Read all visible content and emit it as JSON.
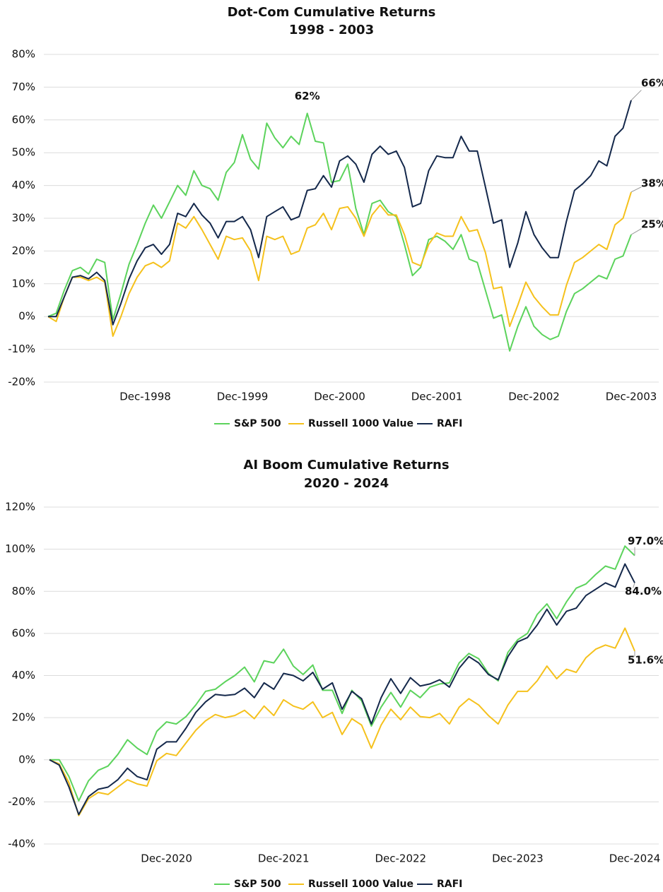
{
  "chart_data": [
    {
      "type": "line",
      "title": "Dot-Com Cumulative Returns",
      "subtitle": "1998 - 2003",
      "categories": [
        null,
        null,
        null,
        null,
        null,
        null,
        null,
        null,
        null,
        null,
        null,
        null,
        "Dec-1998",
        null,
        null,
        null,
        null,
        null,
        null,
        null,
        null,
        null,
        null,
        null,
        "Dec-1999",
        null,
        null,
        null,
        null,
        null,
        null,
        null,
        null,
        null,
        null,
        null,
        "Dec-2000",
        null,
        null,
        null,
        null,
        null,
        null,
        null,
        null,
        null,
        null,
        null,
        "Dec-2001",
        null,
        null,
        null,
        null,
        null,
        null,
        null,
        null,
        null,
        null,
        null,
        "Dec-2002",
        null,
        null,
        null,
        null,
        null,
        null,
        null,
        null,
        null,
        null,
        null,
        "Dec-2003"
      ],
      "ylim": [
        -20,
        80
      ],
      "yticks": [
        {
          "value": -20,
          "label": "-20%"
        },
        {
          "value": -10,
          "label": "-10%"
        },
        {
          "value": 0,
          "label": "0%"
        },
        {
          "value": 10,
          "label": "10%"
        },
        {
          "value": 20,
          "label": "20%"
        },
        {
          "value": 30,
          "label": "30%"
        },
        {
          "value": 40,
          "label": "40%"
        },
        {
          "value": 50,
          "label": "50%"
        },
        {
          "value": 60,
          "label": "60%"
        },
        {
          "value": 70,
          "label": "70%"
        },
        {
          "value": 80,
          "label": "80%"
        }
      ],
      "grid": true,
      "series": [
        {
          "name": "S&P 500",
          "color": "#5cd35c",
          "values": [
            0,
            1,
            8,
            14,
            15,
            13,
            17.5,
            16.5,
            -1,
            7,
            16,
            22,
            28.5,
            34,
            30,
            35,
            40,
            37,
            44.5,
            40,
            39,
            35.5,
            44,
            47,
            55.5,
            48,
            45,
            59,
            54.5,
            51.5,
            55,
            52.5,
            62,
            53.5,
            53,
            41,
            41.5,
            46.5,
            33,
            25,
            34.5,
            35.5,
            32,
            30.5,
            22,
            12.5,
            15,
            23.5,
            24.5,
            23,
            20.5,
            25,
            17.5,
            16.5,
            8,
            -0.5,
            0.5,
            -10.5,
            -3,
            3,
            -3,
            -5.5,
            -7,
            -6,
            1.5,
            7,
            8.5,
            10.5,
            12.5,
            11.5,
            17.5,
            18.5,
            25
          ],
          "value_labels": [
            null,
            null,
            null,
            null,
            null,
            null,
            null,
            null,
            null,
            null,
            null,
            null,
            null,
            null,
            null,
            null,
            null,
            null,
            null,
            null,
            null,
            null,
            null,
            null,
            null,
            null,
            null,
            null,
            null,
            null,
            null,
            null,
            "62%",
            null,
            null,
            null,
            null,
            null,
            null,
            null,
            null,
            null,
            null,
            null,
            null,
            null,
            null,
            null,
            null,
            null,
            null,
            null,
            null,
            null,
            null,
            null,
            null,
            null,
            null,
            null,
            null,
            null,
            null,
            null,
            null,
            null,
            null,
            null,
            null,
            null,
            null,
            null,
            "25%"
          ]
        },
        {
          "name": "Russell 1000 Value",
          "color": "#f5c11c",
          "values": [
            0,
            -1.5,
            6,
            12,
            12,
            11,
            12,
            10.5,
            -6,
            0,
            7,
            12,
            15.5,
            16.5,
            15,
            17,
            28.5,
            27,
            30.5,
            26.5,
            22,
            17.5,
            24.5,
            23.5,
            24,
            20,
            11,
            24.5,
            23.5,
            24.5,
            19,
            20,
            27,
            28,
            31.5,
            26.5,
            33,
            33.5,
            30,
            24.5,
            31,
            34,
            31,
            31,
            25,
            16.5,
            15.5,
            22,
            25.5,
            24.5,
            24.5,
            30.5,
            26,
            26.5,
            19.5,
            8.5,
            9,
            -3,
            3.5,
            10.5,
            6,
            3,
            0.5,
            0.5,
            9.5,
            16.5,
            18,
            20,
            22,
            20.5,
            28,
            30,
            38
          ],
          "value_labels": [
            null,
            null,
            null,
            null,
            null,
            null,
            null,
            null,
            null,
            null,
            null,
            null,
            null,
            null,
            null,
            null,
            null,
            null,
            null,
            null,
            null,
            null,
            null,
            null,
            null,
            null,
            null,
            null,
            null,
            null,
            null,
            null,
            null,
            null,
            null,
            null,
            null,
            null,
            null,
            null,
            null,
            null,
            null,
            null,
            null,
            null,
            null,
            null,
            null,
            null,
            null,
            null,
            null,
            null,
            null,
            null,
            null,
            null,
            null,
            null,
            null,
            null,
            null,
            null,
            null,
            null,
            null,
            null,
            null,
            null,
            null,
            null,
            "38%"
          ]
        },
        {
          "name": "RAFI",
          "color": "#14284b",
          "values": [
            0,
            0,
            6,
            12,
            12.5,
            11.5,
            13.5,
            11,
            -2.5,
            4,
            11.5,
            17,
            21,
            22,
            19,
            22,
            31.5,
            30.5,
            34.5,
            31,
            28.5,
            24,
            29,
            29,
            30.5,
            26.5,
            18,
            30.5,
            32,
            33.5,
            29.5,
            30.5,
            38.5,
            39,
            43,
            39.5,
            47.5,
            49,
            46.5,
            41,
            49.5,
            52,
            49.5,
            50.5,
            45.5,
            33.5,
            34.5,
            44.5,
            49,
            48.5,
            48.5,
            55,
            50.5,
            50.5,
            39.5,
            28.5,
            29.5,
            15,
            22.5,
            32,
            25,
            21,
            18,
            18,
            29,
            38.5,
            40.5,
            43,
            47.5,
            46,
            55,
            57.5,
            66
          ],
          "value_labels": [
            null,
            null,
            null,
            null,
            null,
            null,
            null,
            null,
            null,
            null,
            null,
            null,
            null,
            null,
            null,
            null,
            null,
            null,
            null,
            null,
            null,
            null,
            null,
            null,
            null,
            null,
            null,
            null,
            null,
            null,
            null,
            null,
            null,
            null,
            null,
            null,
            null,
            null,
            null,
            null,
            null,
            null,
            null,
            null,
            null,
            null,
            null,
            null,
            null,
            null,
            null,
            null,
            null,
            null,
            null,
            null,
            null,
            null,
            null,
            null,
            null,
            null,
            null,
            null,
            null,
            null,
            null,
            null,
            null,
            null,
            null,
            null,
            "66%"
          ]
        }
      ]
    },
    {
      "type": "line",
      "title": "AI Boom Cumulative Returns",
      "subtitle": "2020 - 2024",
      "categories": [
        null,
        null,
        null,
        null,
        null,
        null,
        null,
        null,
        null,
        null,
        null,
        null,
        "Dec-2020",
        null,
        null,
        null,
        null,
        null,
        null,
        null,
        null,
        null,
        null,
        null,
        "Dec-2021",
        null,
        null,
        null,
        null,
        null,
        null,
        null,
        null,
        null,
        null,
        null,
        "Dec-2022",
        null,
        null,
        null,
        null,
        null,
        null,
        null,
        null,
        null,
        null,
        null,
        "Dec-2023",
        null,
        null,
        null,
        null,
        null,
        null,
        null,
        null,
        null,
        null,
        null,
        "Dec-2024"
      ],
      "ylim": [
        -40,
        120
      ],
      "yticks": [
        {
          "value": -40,
          "label": "-40%"
        },
        {
          "value": -20,
          "label": "-20%"
        },
        {
          "value": 0,
          "label": "0%"
        },
        {
          "value": 20,
          "label": "20%"
        },
        {
          "value": 40,
          "label": "40%"
        },
        {
          "value": 60,
          "label": "60%"
        },
        {
          "value": 80,
          "label": "80%"
        },
        {
          "value": 100,
          "label": "100%"
        },
        {
          "value": 120,
          "label": "120%"
        }
      ],
      "grid": true,
      "series": [
        {
          "name": "S&P 500",
          "color": "#5cd35c",
          "values": [
            0,
            0,
            -8,
            -19.5,
            -10,
            -5,
            -3,
            2.5,
            9.5,
            5.5,
            2.5,
            13.5,
            18,
            17,
            20.5,
            26,
            32.5,
            33.5,
            37,
            40,
            44,
            37,
            47,
            46,
            52.5,
            44.5,
            40.5,
            45,
            33,
            33,
            22,
            33,
            28,
            16,
            25,
            32,
            25,
            33,
            29.5,
            34.5,
            36,
            36.5,
            46,
            50.5,
            48,
            41,
            37.5,
            51,
            57,
            60,
            69,
            74,
            67,
            75,
            81.5,
            83.5,
            88,
            92,
            90.5,
            101.5,
            97
          ],
          "value_labels": [
            null,
            null,
            null,
            null,
            null,
            null,
            null,
            null,
            null,
            null,
            null,
            null,
            null,
            null,
            null,
            null,
            null,
            null,
            null,
            null,
            null,
            null,
            null,
            null,
            null,
            null,
            null,
            null,
            null,
            null,
            null,
            null,
            null,
            null,
            null,
            null,
            null,
            null,
            null,
            null,
            null,
            null,
            null,
            null,
            null,
            null,
            null,
            null,
            null,
            null,
            null,
            null,
            null,
            null,
            null,
            null,
            null,
            null,
            null,
            null,
            "97.0%"
          ]
        },
        {
          "name": "Russell 1000 Value",
          "color": "#f5c11c",
          "values": [
            0,
            -2,
            -11,
            -26.5,
            -18.5,
            -15.5,
            -16.5,
            -13,
            -9.5,
            -11.5,
            -12.5,
            -0.5,
            3,
            2,
            8,
            14,
            18.5,
            21.5,
            20,
            21,
            23.5,
            19.5,
            25.5,
            21,
            28.5,
            25.5,
            24,
            27.5,
            20,
            22.5,
            12,
            19.5,
            16.5,
            5.5,
            16.5,
            24,
            19,
            25,
            20.5,
            20,
            22,
            17,
            25,
            29,
            26,
            21,
            17,
            26,
            32.5,
            32.5,
            37.5,
            44.5,
            38.5,
            43,
            41.5,
            48.5,
            52.5,
            54.5,
            53,
            62.5,
            51.6
          ],
          "value_labels": [
            null,
            null,
            null,
            null,
            null,
            null,
            null,
            null,
            null,
            null,
            null,
            null,
            null,
            null,
            null,
            null,
            null,
            null,
            null,
            null,
            null,
            null,
            null,
            null,
            null,
            null,
            null,
            null,
            null,
            null,
            null,
            null,
            null,
            null,
            null,
            null,
            null,
            null,
            null,
            null,
            null,
            null,
            null,
            null,
            null,
            null,
            null,
            null,
            null,
            null,
            null,
            null,
            null,
            null,
            null,
            null,
            null,
            null,
            null,
            null,
            "51.6%"
          ]
        },
        {
          "name": "RAFI",
          "color": "#14284b",
          "values": [
            0,
            -2.5,
            -13,
            -26,
            -17.5,
            -14,
            -13,
            -9.5,
            -4,
            -8,
            -9.5,
            5,
            8.5,
            8.5,
            15,
            22.5,
            27.5,
            31,
            30.5,
            31,
            34,
            29.5,
            36.5,
            33.5,
            41,
            40,
            37.5,
            41.5,
            33.5,
            36.5,
            24,
            32.5,
            29,
            17,
            29.5,
            38.5,
            31.5,
            39,
            35,
            36,
            38,
            34.5,
            43.5,
            49,
            46,
            40.5,
            38,
            49,
            56,
            58,
            64,
            71.5,
            64,
            70.5,
            72,
            78,
            81,
            84,
            82,
            93,
            84
          ],
          "value_labels": [
            null,
            null,
            null,
            null,
            null,
            null,
            null,
            null,
            null,
            null,
            null,
            null,
            null,
            null,
            null,
            null,
            null,
            null,
            null,
            null,
            null,
            null,
            null,
            null,
            null,
            null,
            null,
            null,
            null,
            null,
            null,
            null,
            null,
            null,
            null,
            null,
            null,
            null,
            null,
            null,
            null,
            null,
            null,
            null,
            null,
            null,
            null,
            null,
            null,
            null,
            null,
            null,
            null,
            null,
            null,
            null,
            null,
            null,
            null,
            null,
            "84.0%"
          ]
        }
      ]
    }
  ]
}
